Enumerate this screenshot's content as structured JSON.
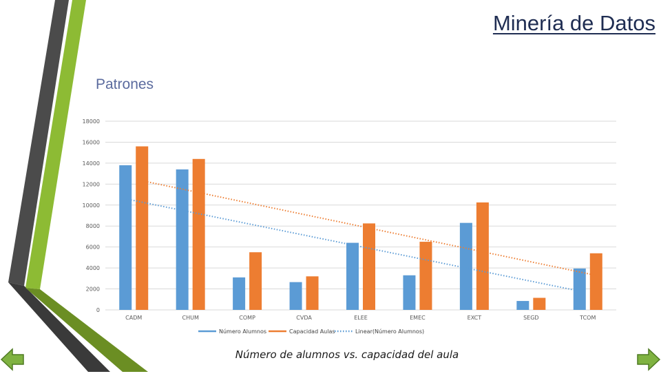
{
  "page": {
    "title": "Minería de Datos",
    "section": "Patrones",
    "caption": "Número de alumnos vs. capacidad del aula"
  },
  "theme": {
    "accent_green": "#8dbb34",
    "dark_gray": "#4b4b4b",
    "series_blue": "#5b9bd5",
    "series_orange": "#ed7d31"
  },
  "nav": {
    "prev_icon": "left-arrow-icon",
    "next_icon": "right-arrow-icon"
  },
  "chart_data": {
    "type": "bar",
    "categories": [
      "CADM",
      "CHUM",
      "COMP",
      "CVDA",
      "ELEE",
      "EMEC",
      "EXCT",
      "SEGD",
      "TCOM"
    ],
    "series": [
      {
        "name": "Número Alumnos",
        "color": "#5b9bd5",
        "values": [
          13800,
          13400,
          3100,
          2650,
          6400,
          3300,
          8300,
          850,
          3950
        ]
      },
      {
        "name": "Capacidad Aulas",
        "color": "#ed7d31",
        "values": [
          15600,
          14400,
          5500,
          3200,
          8250,
          6500,
          10250,
          1150,
          5400
        ]
      }
    ],
    "trendlines": [
      {
        "name": "Linear(Número Alumnos)",
        "series": "Número Alumnos",
        "color": "#5b9bd5"
      },
      {
        "name": "",
        "series": "Capacidad Aulas",
        "color": "#ed7d31"
      }
    ],
    "yticks": [
      "0",
      "2000",
      "4000",
      "6000",
      "8000",
      "10000",
      "12000",
      "14000",
      "16000",
      "18000"
    ],
    "ylim": [
      0,
      18000
    ],
    "grid": true,
    "legend": "bottom",
    "title": "",
    "xlabel": "",
    "ylabel": ""
  }
}
